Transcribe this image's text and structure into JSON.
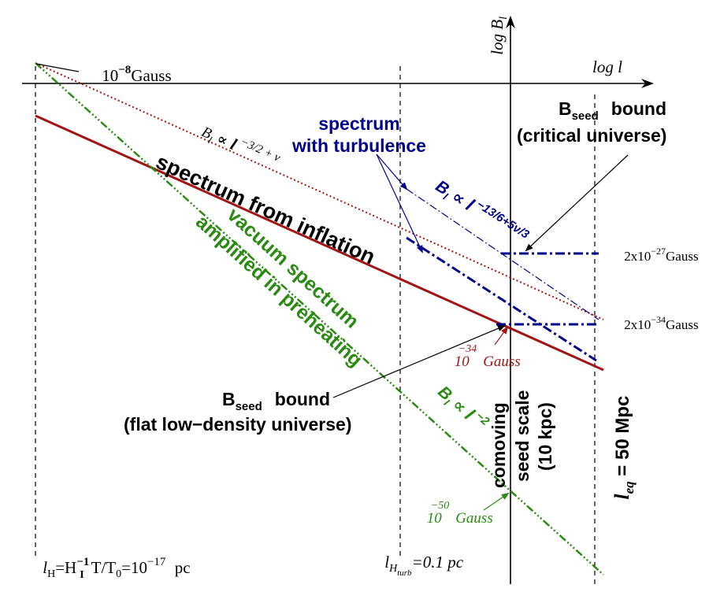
{
  "axes": {
    "y_label": "log B",
    "y_label_sub": "l",
    "x_label": "log l"
  },
  "colors": {
    "black": "#000000",
    "red": "#a31515",
    "green": "#2a8a12",
    "blue": "#00008b"
  },
  "annotations": {
    "gauss_top_base": "10",
    "gauss_top_exp": "−8",
    "gauss_top_unit": "Gauss",
    "red_power_B": "B",
    "red_power_sub": "l",
    "red_power_prop": "∝",
    "red_power_l": "l",
    "red_power_exp": "−3/2 + ν",
    "turb_line1": "spectrum",
    "turb_line2": "with turbulence",
    "blue_power_B": "B",
    "blue_power_sub": "l",
    "blue_power_prop": "∝",
    "blue_power_l": "l",
    "blue_power_exp": "−13/6+5ν/3",
    "bseed_crit_B": "B",
    "bseed_crit_sub": "seed",
    "bseed_crit_word": "bound",
    "bseed_crit_line2": "(critical universe)",
    "inflation_label": "spectrum from inflation",
    "vacuum_line1": "vacuum spectrum",
    "vacuum_line2": "amplified in preheating",
    "gauss27_pre": "2x10",
    "gauss27_exp": "−27",
    "gauss27_unit": "Gauss",
    "gauss34r_pre": "2x10",
    "gauss34r_exp": "−34",
    "gauss34r_unit": "Gauss",
    "red34_base": "10",
    "red34_exp": "−34",
    "red34_unit": "Gauss",
    "bseed_flat_B": "B",
    "bseed_flat_sub": "seed",
    "bseed_flat_word": "bound",
    "bseed_flat_line2": "(flat low−density universe)",
    "green_power_B": "B",
    "green_power_sub": "l",
    "green_power_prop": "∝",
    "green_power_l": "l",
    "green_power_exp": "−2",
    "comoving_line1": "comoving",
    "comoving_line2": "seed scale",
    "comoving_line3": "(10 kpc)",
    "leq_l": "l",
    "leq_sub": "eq",
    "leq_rest": " = 50 Mpc",
    "green50_base": "10",
    "green50_exp": "−50",
    "green50_unit": "Gauss",
    "lh_l": "l",
    "lh_sub": "H",
    "lh_eq": "=H",
    "lh_exp": "−1",
    "lh_sub2": "I",
    "lh_T": " T/T",
    "lh_sub3": "0",
    "lh_eq2": "=10",
    "lh_exp2": "−17",
    "lh_unit": " pc",
    "lturb_l": "l",
    "lturb_sub": "H",
    "lturb_subsub": "turb",
    "lturb_rest": "=0.1 pc"
  }
}
